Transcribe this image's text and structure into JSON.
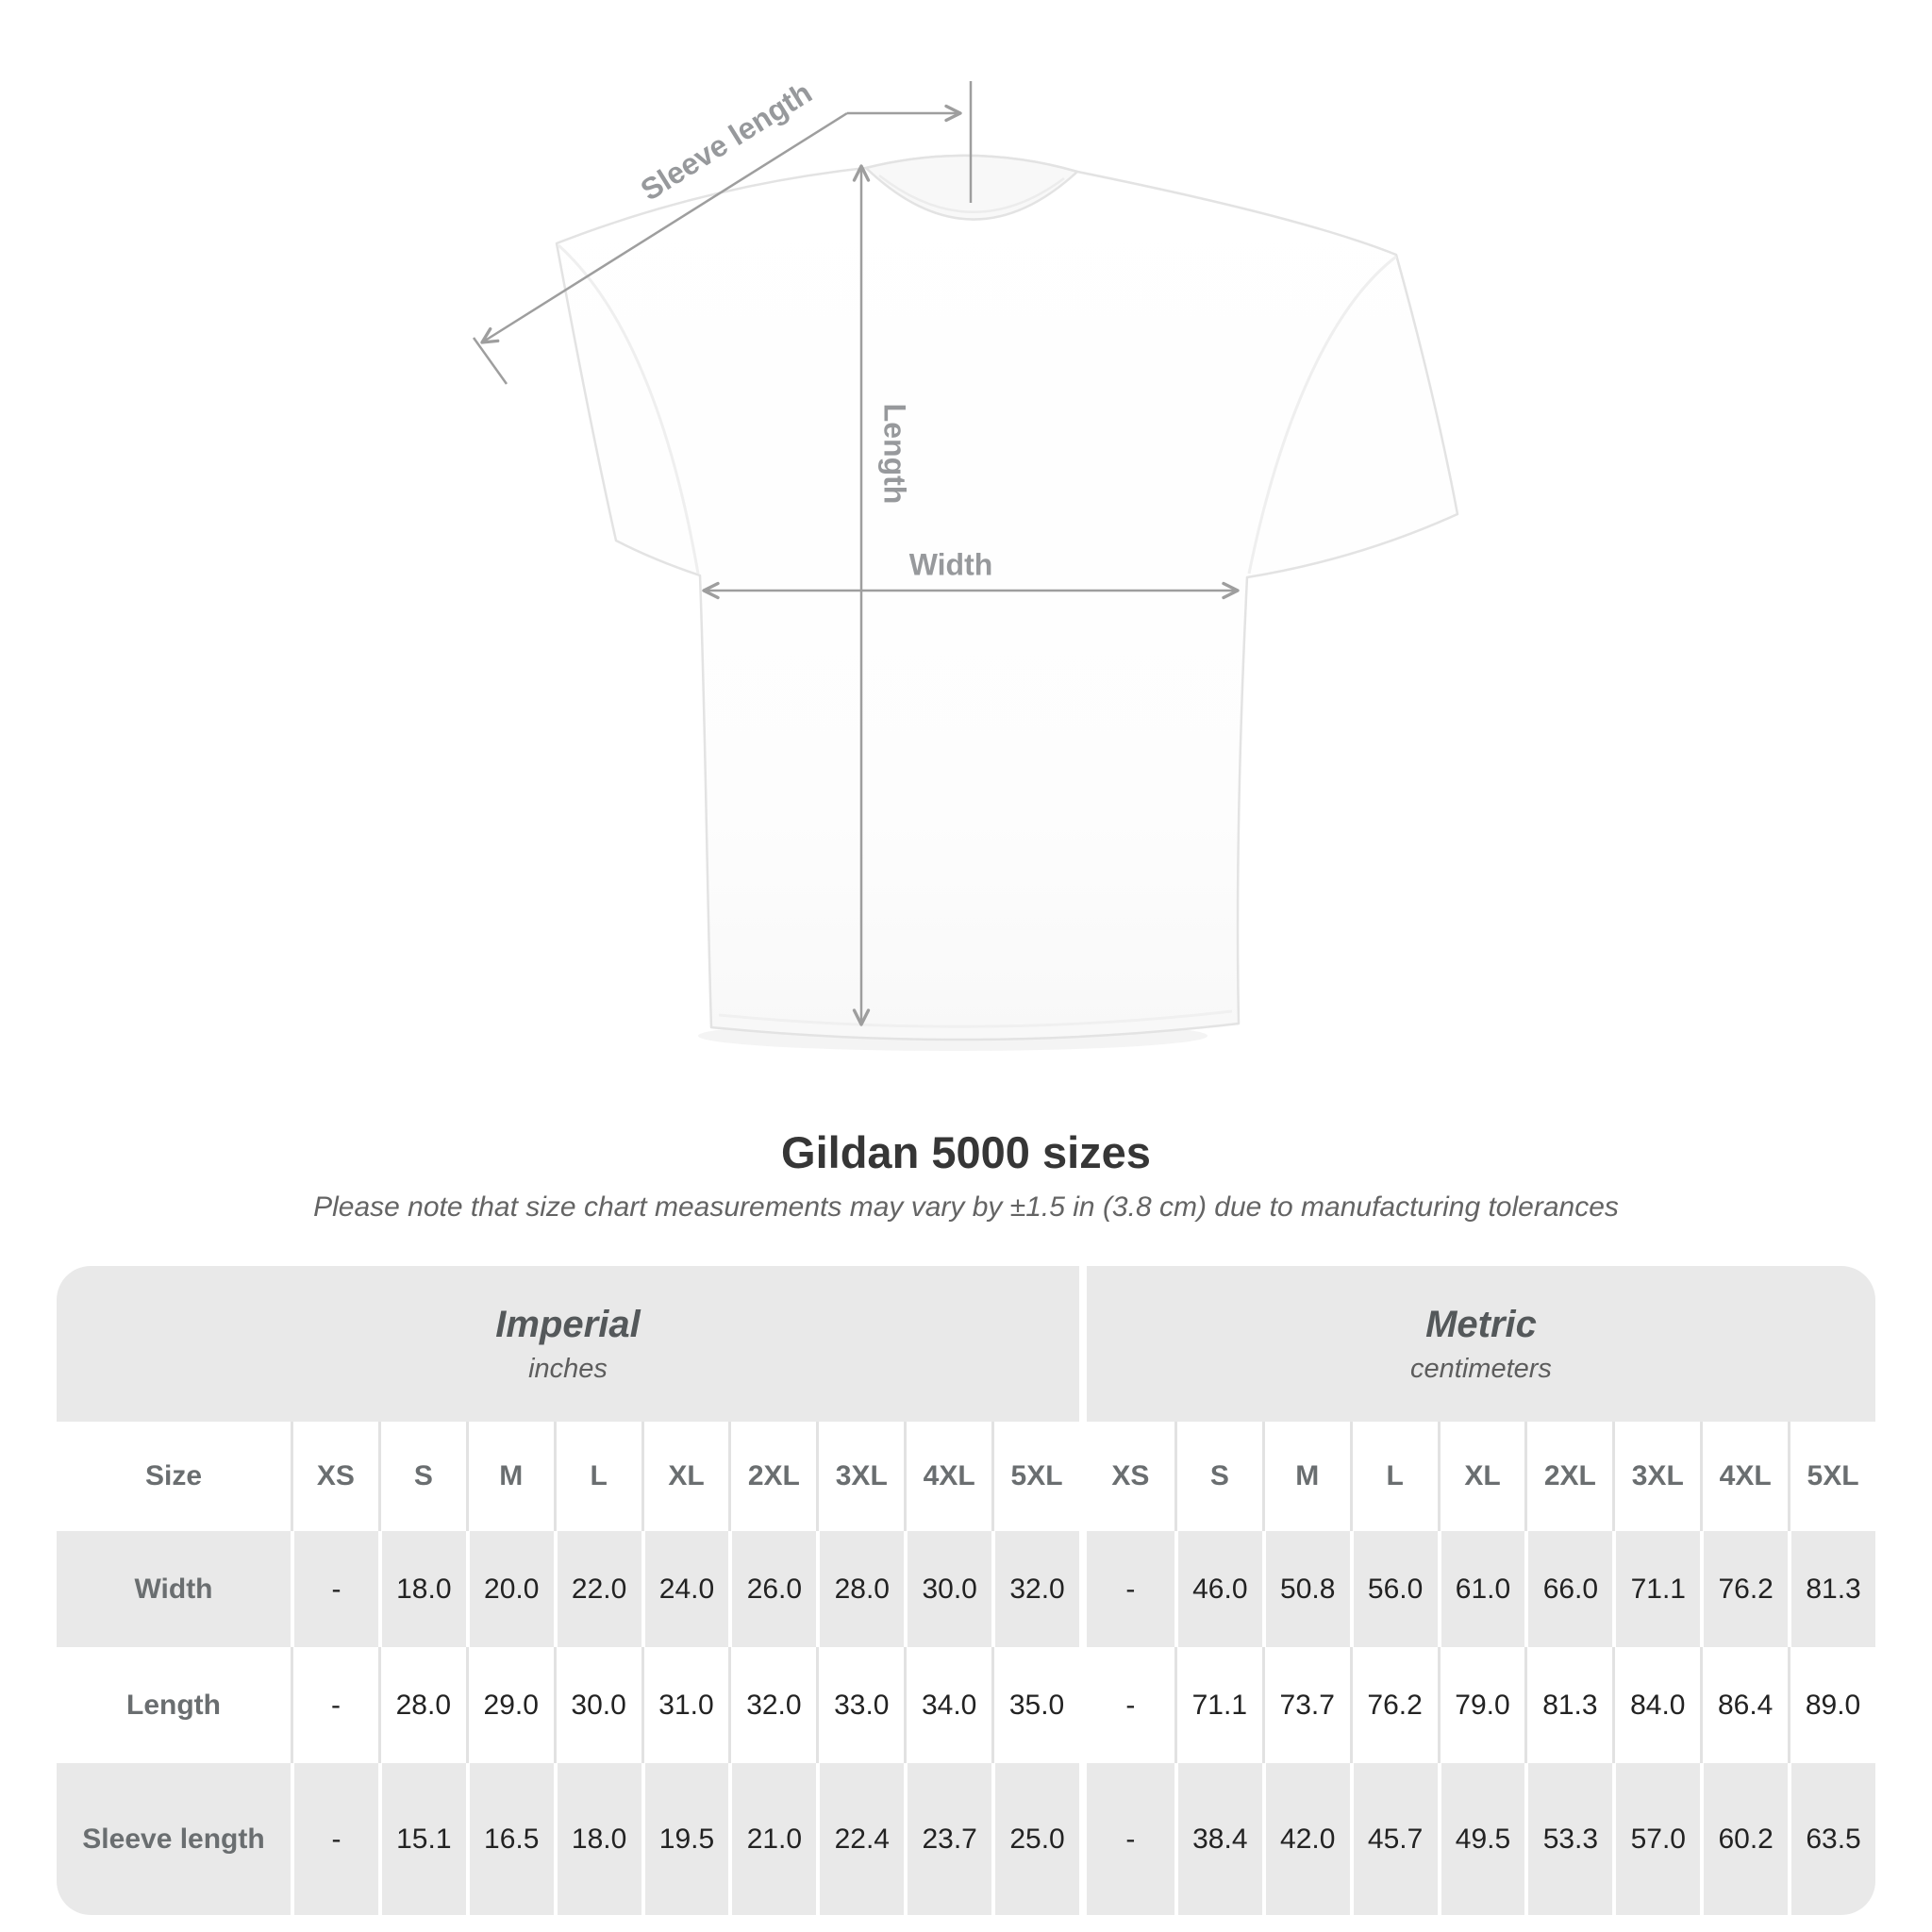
{
  "title": "Gildan 5000 sizes",
  "subtitle": "Please note that size chart measurements may vary by ±1.5 in (3.8 cm) due to manufacturing tolerances",
  "diagram": {
    "labels": {
      "sleeve_length": "Sleeve length",
      "length": "Length",
      "width": "Width"
    }
  },
  "table": {
    "size_label": "Size",
    "groups": [
      {
        "name": "Imperial",
        "unit": "inches"
      },
      {
        "name": "Metric",
        "unit": "centimeters"
      }
    ],
    "sizes": [
      "XS",
      "S",
      "M",
      "L",
      "XL",
      "2XL",
      "3XL",
      "4XL",
      "5XL"
    ],
    "rows": [
      {
        "key": "width",
        "label": "Width",
        "imperial": [
          "-",
          "18.0",
          "20.0",
          "22.0",
          "24.0",
          "26.0",
          "28.0",
          "30.0",
          "32.0"
        ],
        "metric": [
          "-",
          "46.0",
          "50.8",
          "56.0",
          "61.0",
          "66.0",
          "71.1",
          "76.2",
          "81.3"
        ]
      },
      {
        "key": "length",
        "label": "Length",
        "imperial": [
          "-",
          "28.0",
          "29.0",
          "30.0",
          "31.0",
          "32.0",
          "33.0",
          "34.0",
          "35.0"
        ],
        "metric": [
          "-",
          "71.1",
          "73.7",
          "76.2",
          "79.0",
          "81.3",
          "84.0",
          "86.4",
          "89.0"
        ]
      },
      {
        "key": "sleeve",
        "label": "Sleeve length",
        "imperial": [
          "-",
          "15.1",
          "16.5",
          "18.0",
          "19.5",
          "21.0",
          "22.4",
          "23.7",
          "25.0"
        ],
        "metric": [
          "-",
          "38.4",
          "42.0",
          "45.7",
          "49.5",
          "53.3",
          "57.0",
          "60.2",
          "63.5"
        ]
      }
    ]
  },
  "chart_data": {
    "type": "table",
    "title": "Gildan 5000 sizes",
    "note": "Please note that size chart measurements may vary by ±1.5 in (3.8 cm) due to manufacturing tolerances",
    "unit_groups": [
      {
        "name": "Imperial",
        "unit": "inches"
      },
      {
        "name": "Metric",
        "unit": "centimeters"
      }
    ],
    "sizes": [
      "XS",
      "S",
      "M",
      "L",
      "XL",
      "2XL",
      "3XL",
      "4XL",
      "5XL"
    ],
    "rows": [
      {
        "measurement": "Width",
        "imperial_in": [
          null,
          18.0,
          20.0,
          22.0,
          24.0,
          26.0,
          28.0,
          30.0,
          32.0
        ],
        "metric_cm": [
          null,
          46.0,
          50.8,
          56.0,
          61.0,
          66.0,
          71.1,
          76.2,
          81.3
        ]
      },
      {
        "measurement": "Length",
        "imperial_in": [
          null,
          28.0,
          29.0,
          30.0,
          31.0,
          32.0,
          33.0,
          34.0,
          35.0
        ],
        "metric_cm": [
          null,
          71.1,
          73.7,
          76.2,
          79.0,
          81.3,
          84.0,
          86.4,
          89.0
        ]
      },
      {
        "measurement": "Sleeve length",
        "imperial_in": [
          null,
          15.1,
          16.5,
          18.0,
          19.5,
          21.0,
          22.4,
          23.7,
          25.0
        ],
        "metric_cm": [
          null,
          38.4,
          42.0,
          45.7,
          49.5,
          53.3,
          57.0,
          60.2,
          63.5
        ]
      }
    ]
  },
  "colors": {
    "table_band_gray": "#e9e9e9",
    "divider_gray": "#e2e2e2",
    "header_text_gray": "#6a6e70",
    "value_text": "#222222",
    "dimension_line_gray": "#9e9e9e",
    "dimension_label_gray": "#97999c",
    "title_text": "#363636"
  }
}
